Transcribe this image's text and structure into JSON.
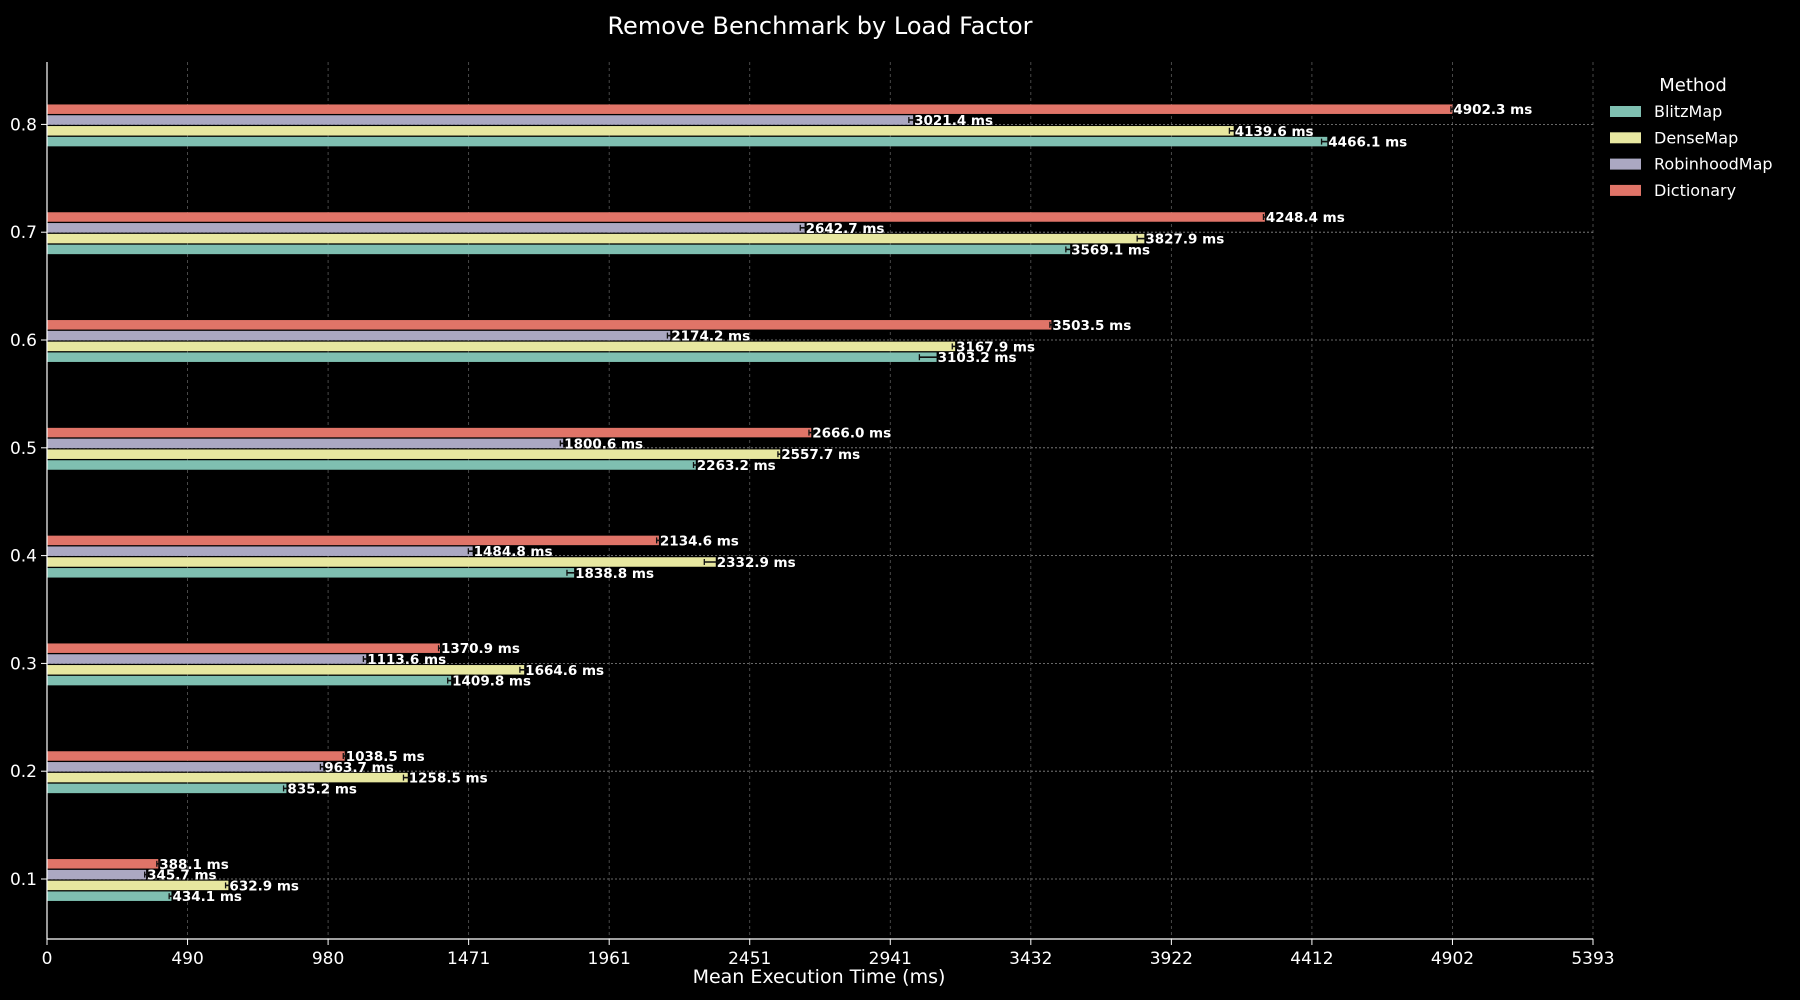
{
  "chart_data": {
    "type": "bar",
    "orientation": "horizontal",
    "title": "Remove Benchmark by Load Factor",
    "xlabel": "Mean Execution Time (ms)",
    "ylabel": "",
    "xlim": [
      0,
      5393
    ],
    "x_ticks": [
      "0",
      "490",
      "980",
      "1471",
      "1961",
      "2451",
      "2941",
      "3432",
      "3922",
      "4412",
      "4902",
      "5393"
    ],
    "categories": [
      "0.1",
      "0.2",
      "0.3",
      "0.4",
      "0.5",
      "0.6",
      "0.7",
      "0.8"
    ],
    "value_suffix": " ms",
    "grid": true,
    "error_bars": true,
    "legend": {
      "title": "Method",
      "placement": "upper-right-outside"
    },
    "series": [
      {
        "name": "BlitzMap",
        "color": "#7fbfb1",
        "values": [
          434.1,
          835.2,
          1409.8,
          1838.8,
          2263.2,
          3103.2,
          3569.1,
          4466.1
        ],
        "labels": [
          "434.1 ms",
          "835.2 ms",
          "1409.8 ms",
          "1838.8 ms",
          "2263.2 ms",
          "3103.2 ms",
          "3569.1 ms",
          "4466.1 ms"
        ],
        "errors": [
          8,
          10,
          12,
          25,
          8,
          60,
          15,
          20
        ]
      },
      {
        "name": "DenseMap",
        "color": "#e7e7a0",
        "values": [
          632.9,
          1258.5,
          1664.6,
          2332.9,
          2557.7,
          3167.9,
          3827.9,
          4139.6
        ],
        "labels": [
          "632.9 ms",
          "1258.5 ms",
          "1664.6 ms",
          "2332.9 ms",
          "2557.7 ms",
          "3167.9 ms",
          "3827.9 ms",
          "4139.6 ms"
        ],
        "errors": [
          10,
          15,
          15,
          40,
          8,
          10,
          25,
          15
        ]
      },
      {
        "name": "RobinhoodMap",
        "color": "#aba8c2",
        "values": [
          345.7,
          963.7,
          1113.6,
          1484.8,
          1800.6,
          2174.2,
          2642.7,
          3021.4
        ],
        "labels": [
          "345.7 ms",
          "963.7 ms",
          "1113.6 ms",
          "1484.8 ms",
          "1800.6 ms",
          "2174.2 ms",
          "2642.7 ms",
          "3021.4 ms"
        ],
        "errors": [
          5,
          10,
          10,
          15,
          10,
          10,
          15,
          15
        ]
      },
      {
        "name": "Dictionary",
        "color": "#e07468",
        "values": [
          388.1,
          1038.5,
          1370.9,
          2134.6,
          2666.0,
          3503.5,
          4248.4,
          4902.3
        ],
        "labels": [
          "388.1 ms",
          "1038.5 ms",
          "1370.9 ms",
          "2134.6 ms",
          "2666.0 ms",
          "3503.5 ms",
          "4248.4 ms",
          "4902.3 ms"
        ],
        "errors": [
          5,
          5,
          5,
          8,
          8,
          5,
          5,
          5
        ]
      }
    ]
  }
}
